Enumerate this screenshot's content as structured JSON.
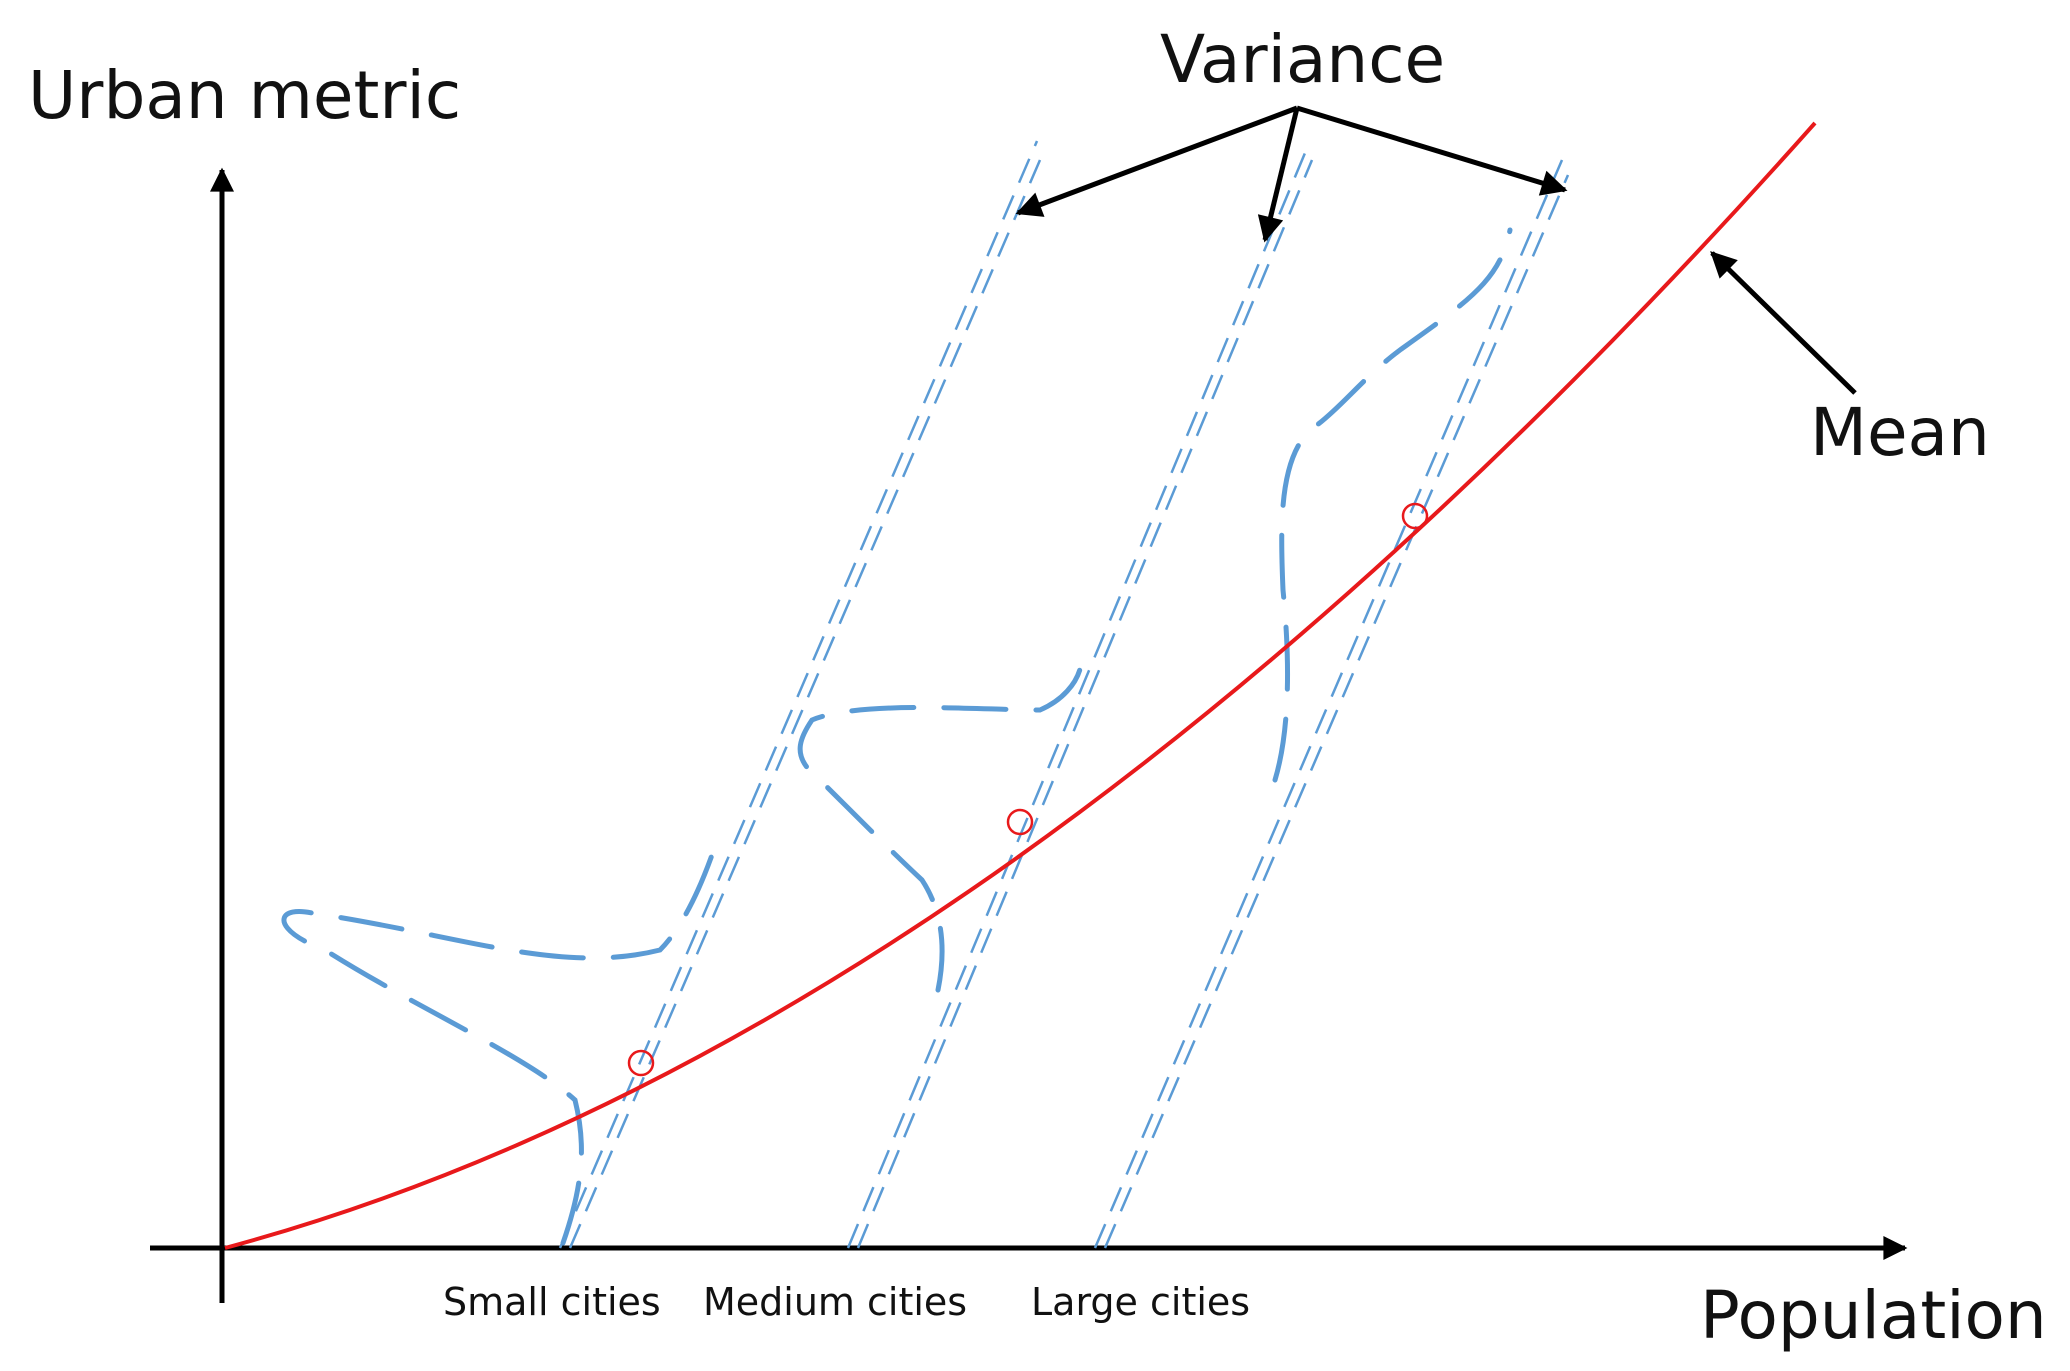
{
  "labels": {
    "y_axis": "Urban metric",
    "x_axis": "Population",
    "variance": "Variance",
    "mean": "Mean"
  },
  "categories": [
    "Small cities",
    "Medium cities",
    "Large cities"
  ],
  "colors": {
    "mean_curve": "#e8191b",
    "variance_lines": "#5b9bd5",
    "axes": "#000000"
  }
}
